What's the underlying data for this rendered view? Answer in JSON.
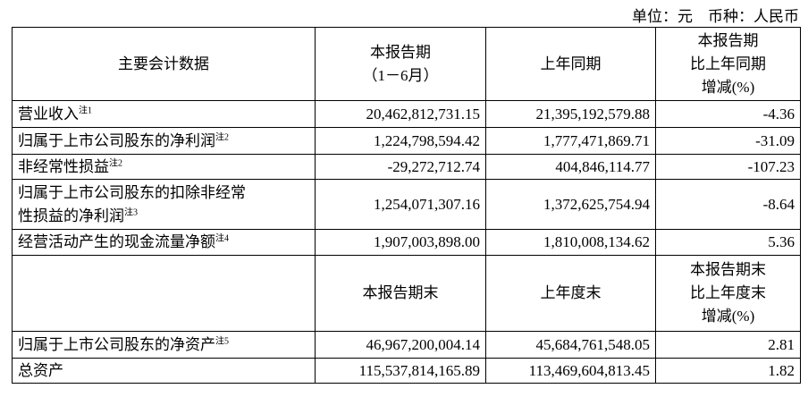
{
  "unit_line": "单位：元　币种：人民币",
  "table": {
    "header": [
      "主要会计数据",
      "本报告期\n（1－6月）",
      "上年同期",
      "本报告期\n比上年同期\n增减(%)"
    ],
    "rows": [
      {
        "label": "营业收入",
        "note": "注1",
        "values": [
          "20,462,812,731.15",
          "21,395,192,579.88",
          "-4.36"
        ]
      },
      {
        "label": "归属于上市公司股东的净利润",
        "note": "注2",
        "values": [
          "1,224,798,594.42",
          "1,777,471,869.71",
          "-31.09"
        ]
      },
      {
        "label": "非经常性损益",
        "note": "注2",
        "values": [
          "-29,272,712.74",
          "404,846,114.77",
          "-107.23"
        ]
      },
      {
        "label": "归属于上市公司股东的扣除非经常\n性损益的净利润",
        "note": "注3",
        "values": [
          "1,254,071,307.16",
          "1,372,625,754.94",
          "-8.64"
        ]
      },
      {
        "label": "经营活动产生的现金流量净额",
        "note": "注4",
        "values": [
          "1,907,003,898.00",
          "1,810,008,134.62",
          "5.36"
        ]
      }
    ],
    "header2": [
      "本报告期末",
      "上年度末",
      "本报告期末\n比上年度末\n增减(%)"
    ],
    "rows2": [
      {
        "label": "归属于上市公司股东的净资产",
        "note": "注5",
        "values": [
          "46,967,200,004.14",
          "45,684,761,548.05",
          "2.81"
        ]
      },
      {
        "label": "总资产",
        "values": [
          "115,537,814,165.89",
          "113,469,604,813.45",
          "1.82"
        ]
      }
    ]
  }
}
